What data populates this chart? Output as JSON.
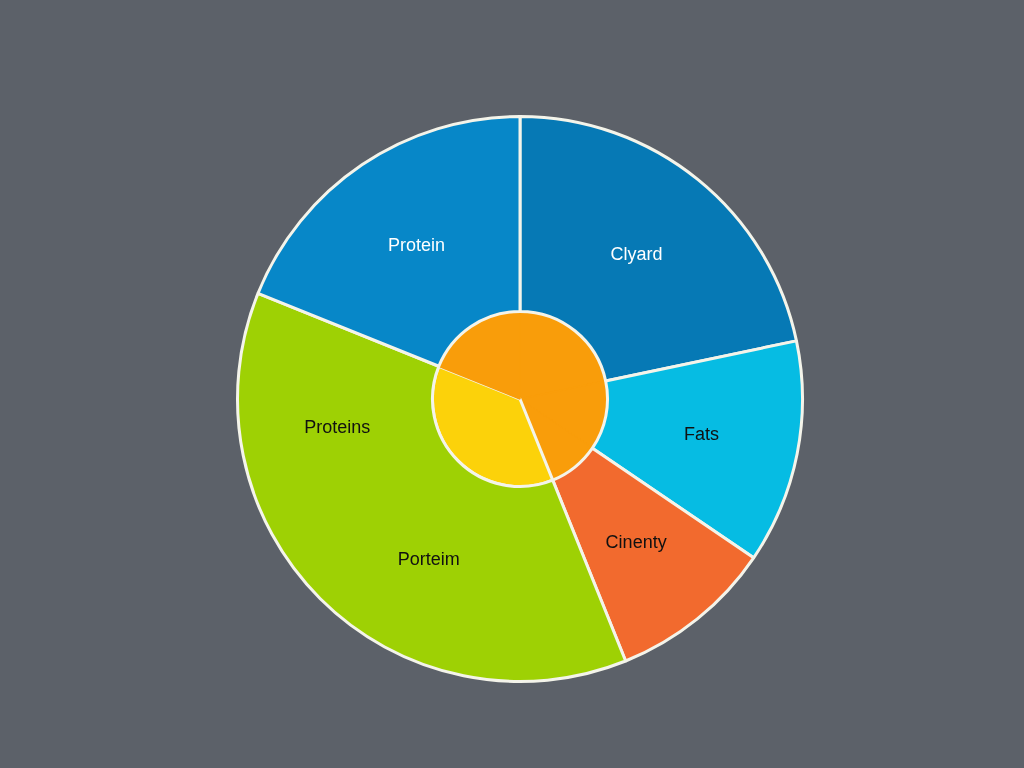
{
  "chart_data": {
    "type": "pie",
    "categories": [
      "Clyard",
      "Fats",
      "Cinenty",
      "Porteim",
      "Protein"
    ],
    "series": [
      {
        "values": [
          21.7,
          12.8,
          9.4,
          37.2,
          18.9
        ],
        "colors": [
          "#0679b5",
          "#06bce3",
          "#f26a2e",
          "#9ed104",
          "#0787c8"
        ]
      },
      {
        "values": [
          21.7,
          12.8,
          9.4,
          37.2,
          18.9
        ],
        "colors": [
          "#f99d0a",
          "#f99d0a",
          "#f99d0a",
          "#fcd20a",
          "#f99d0a"
        ]
      }
    ],
    "annotations": [
      "Proteins"
    ]
  }
}
